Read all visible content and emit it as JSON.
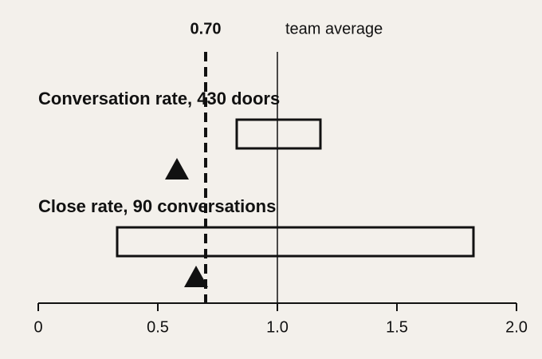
{
  "chart_data": {
    "type": "interval",
    "rows": [
      {
        "label": "Conversation rate, 430 doors",
        "low": 0.83,
        "high": 1.18,
        "estimate": 0.58
      },
      {
        "label": "Close rate, 90 conversations",
        "low": 0.33,
        "high": 1.82,
        "estimate": 0.66
      }
    ],
    "reference_lines": [
      {
        "value": 0.7,
        "label": "0.70",
        "style": "dashed"
      },
      {
        "value": 1,
        "label": "team average",
        "style": "solid"
      }
    ],
    "xlim": [
      0,
      2
    ],
    "xticks": [
      0,
      0.5,
      {
        "value": 1,
        "label": "1.0"
      },
      1.5,
      {
        "value": 2,
        "label": "2.0"
      }
    ]
  }
}
